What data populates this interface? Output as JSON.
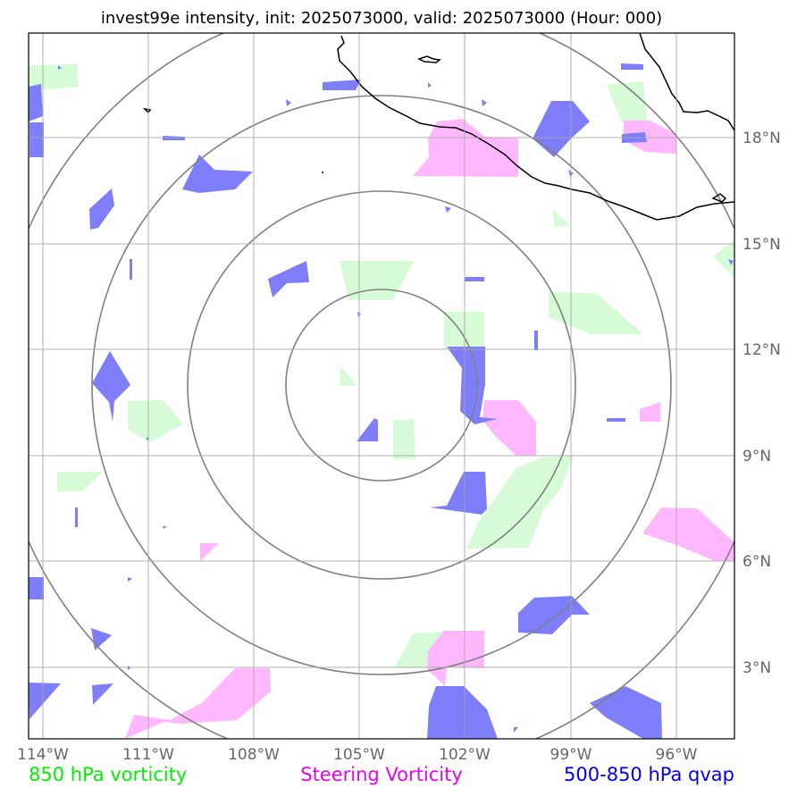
{
  "title": "invest99e intensity, init: 2025073000, valid: 2025073000 (Hour: 000)",
  "axes": {
    "lon_ticks": [
      "114°W",
      "111°W",
      "108°W",
      "105°W",
      "102°W",
      "99°W",
      "96°W"
    ],
    "lat_ticks": [
      "18°N",
      "15°N",
      "12°N",
      "9°N",
      "6°N",
      "3°N"
    ]
  },
  "legend": [
    {
      "label": "850 hPa vorticity",
      "color": "#00ee00"
    },
    {
      "label": "Steering Vorticity",
      "color": "#ee00ee"
    },
    {
      "label": "500-850 hPa qvap",
      "color": "#0000ee"
    }
  ],
  "colors": {
    "vorticity_fill": "#d6fbd6",
    "steering_fill": "#ffb8ff",
    "qvap_fill": "#7b7bfb",
    "range_rings": "#808080",
    "grid": "#bfbfbf",
    "coastline": "#000000"
  },
  "storm_center": {
    "lon": -104.4,
    "lat": 11.0
  }
}
